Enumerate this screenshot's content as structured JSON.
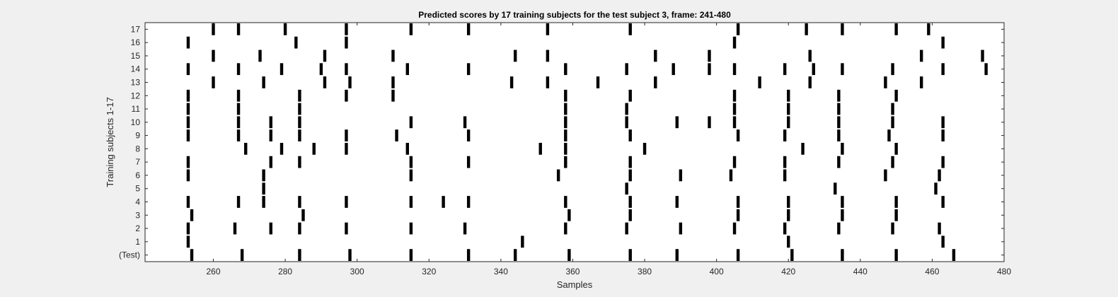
{
  "chart_data": {
    "type": "raster",
    "title": "Predicted scores by 17 training subjects for the test subject 3, frame: 241-480",
    "xlabel": "Samples",
    "ylabel": "Training subjects 1-17",
    "xlim": [
      241,
      480
    ],
    "x_ticks": [
      260,
      280,
      300,
      320,
      340,
      360,
      380,
      400,
      420,
      440,
      460,
      480
    ],
    "row_labels": [
      "(Test)",
      "1",
      "2",
      "3",
      "4",
      "5",
      "6",
      "7",
      "8",
      "9",
      "10",
      "11",
      "12",
      "13",
      "14",
      "15",
      "16",
      "17"
    ],
    "grid": false,
    "marker_color": "#000000",
    "rows": [
      {
        "label": "(Test)",
        "x": [
          254,
          268,
          284,
          298,
          315,
          331,
          344,
          359,
          376,
          389,
          406,
          421,
          435,
          450,
          466
        ]
      },
      {
        "label": "1",
        "x": [
          253,
          346,
          420,
          463
        ]
      },
      {
        "label": "2",
        "x": [
          253,
          266,
          276,
          284,
          297,
          315,
          330,
          358,
          375,
          390,
          405,
          419,
          434,
          449,
          462
        ]
      },
      {
        "label": "3",
        "x": [
          254,
          285,
          359,
          376,
          406,
          420,
          435,
          450
        ]
      },
      {
        "label": "4",
        "x": [
          253,
          267,
          274,
          284,
          297,
          315,
          324,
          331,
          358,
          376,
          389,
          406,
          420,
          435,
          450,
          463
        ]
      },
      {
        "label": "5",
        "x": [
          274,
          375,
          433,
          461
        ]
      },
      {
        "label": "6",
        "x": [
          253,
          274,
          315,
          356,
          376,
          390,
          404,
          419,
          447,
          462
        ]
      },
      {
        "label": "7",
        "x": [
          253,
          276,
          284,
          315,
          331,
          358,
          376,
          405,
          419,
          434,
          449,
          463
        ]
      },
      {
        "label": "8",
        "x": [
          269,
          279,
          288,
          297,
          314,
          351,
          358,
          380,
          424,
          435,
          450
        ]
      },
      {
        "label": "9",
        "x": [
          253,
          267,
          276,
          284,
          297,
          311,
          331,
          358,
          376,
          406,
          419,
          434,
          448,
          463
        ]
      },
      {
        "label": "10",
        "x": [
          253,
          267,
          276,
          284,
          315,
          330,
          358,
          375,
          389,
          398,
          405,
          420,
          434,
          449,
          463
        ]
      },
      {
        "label": "11",
        "x": [
          253,
          267,
          284,
          358,
          375,
          405,
          420,
          434,
          449
        ]
      },
      {
        "label": "12",
        "x": [
          253,
          267,
          284,
          297,
          310,
          358,
          376,
          405,
          420,
          434,
          450
        ]
      },
      {
        "label": "13",
        "x": [
          260,
          274,
          291,
          298,
          310,
          343,
          353,
          367,
          383,
          412,
          426,
          447,
          457
        ]
      },
      {
        "label": "14",
        "x": [
          253,
          267,
          279,
          290,
          297,
          314,
          331,
          358,
          375,
          388,
          398,
          405,
          419,
          427,
          435,
          449,
          463,
          475
        ]
      },
      {
        "label": "15",
        "x": [
          260,
          273,
          291,
          310,
          344,
          353,
          383,
          398,
          426,
          457,
          474
        ]
      },
      {
        "label": "16",
        "x": [
          253,
          283,
          297,
          405,
          463
        ]
      },
      {
        "label": "17",
        "x": [
          260,
          267,
          280,
          297,
          315,
          331,
          353,
          376,
          406,
          425,
          435,
          450,
          459
        ]
      }
    ]
  }
}
